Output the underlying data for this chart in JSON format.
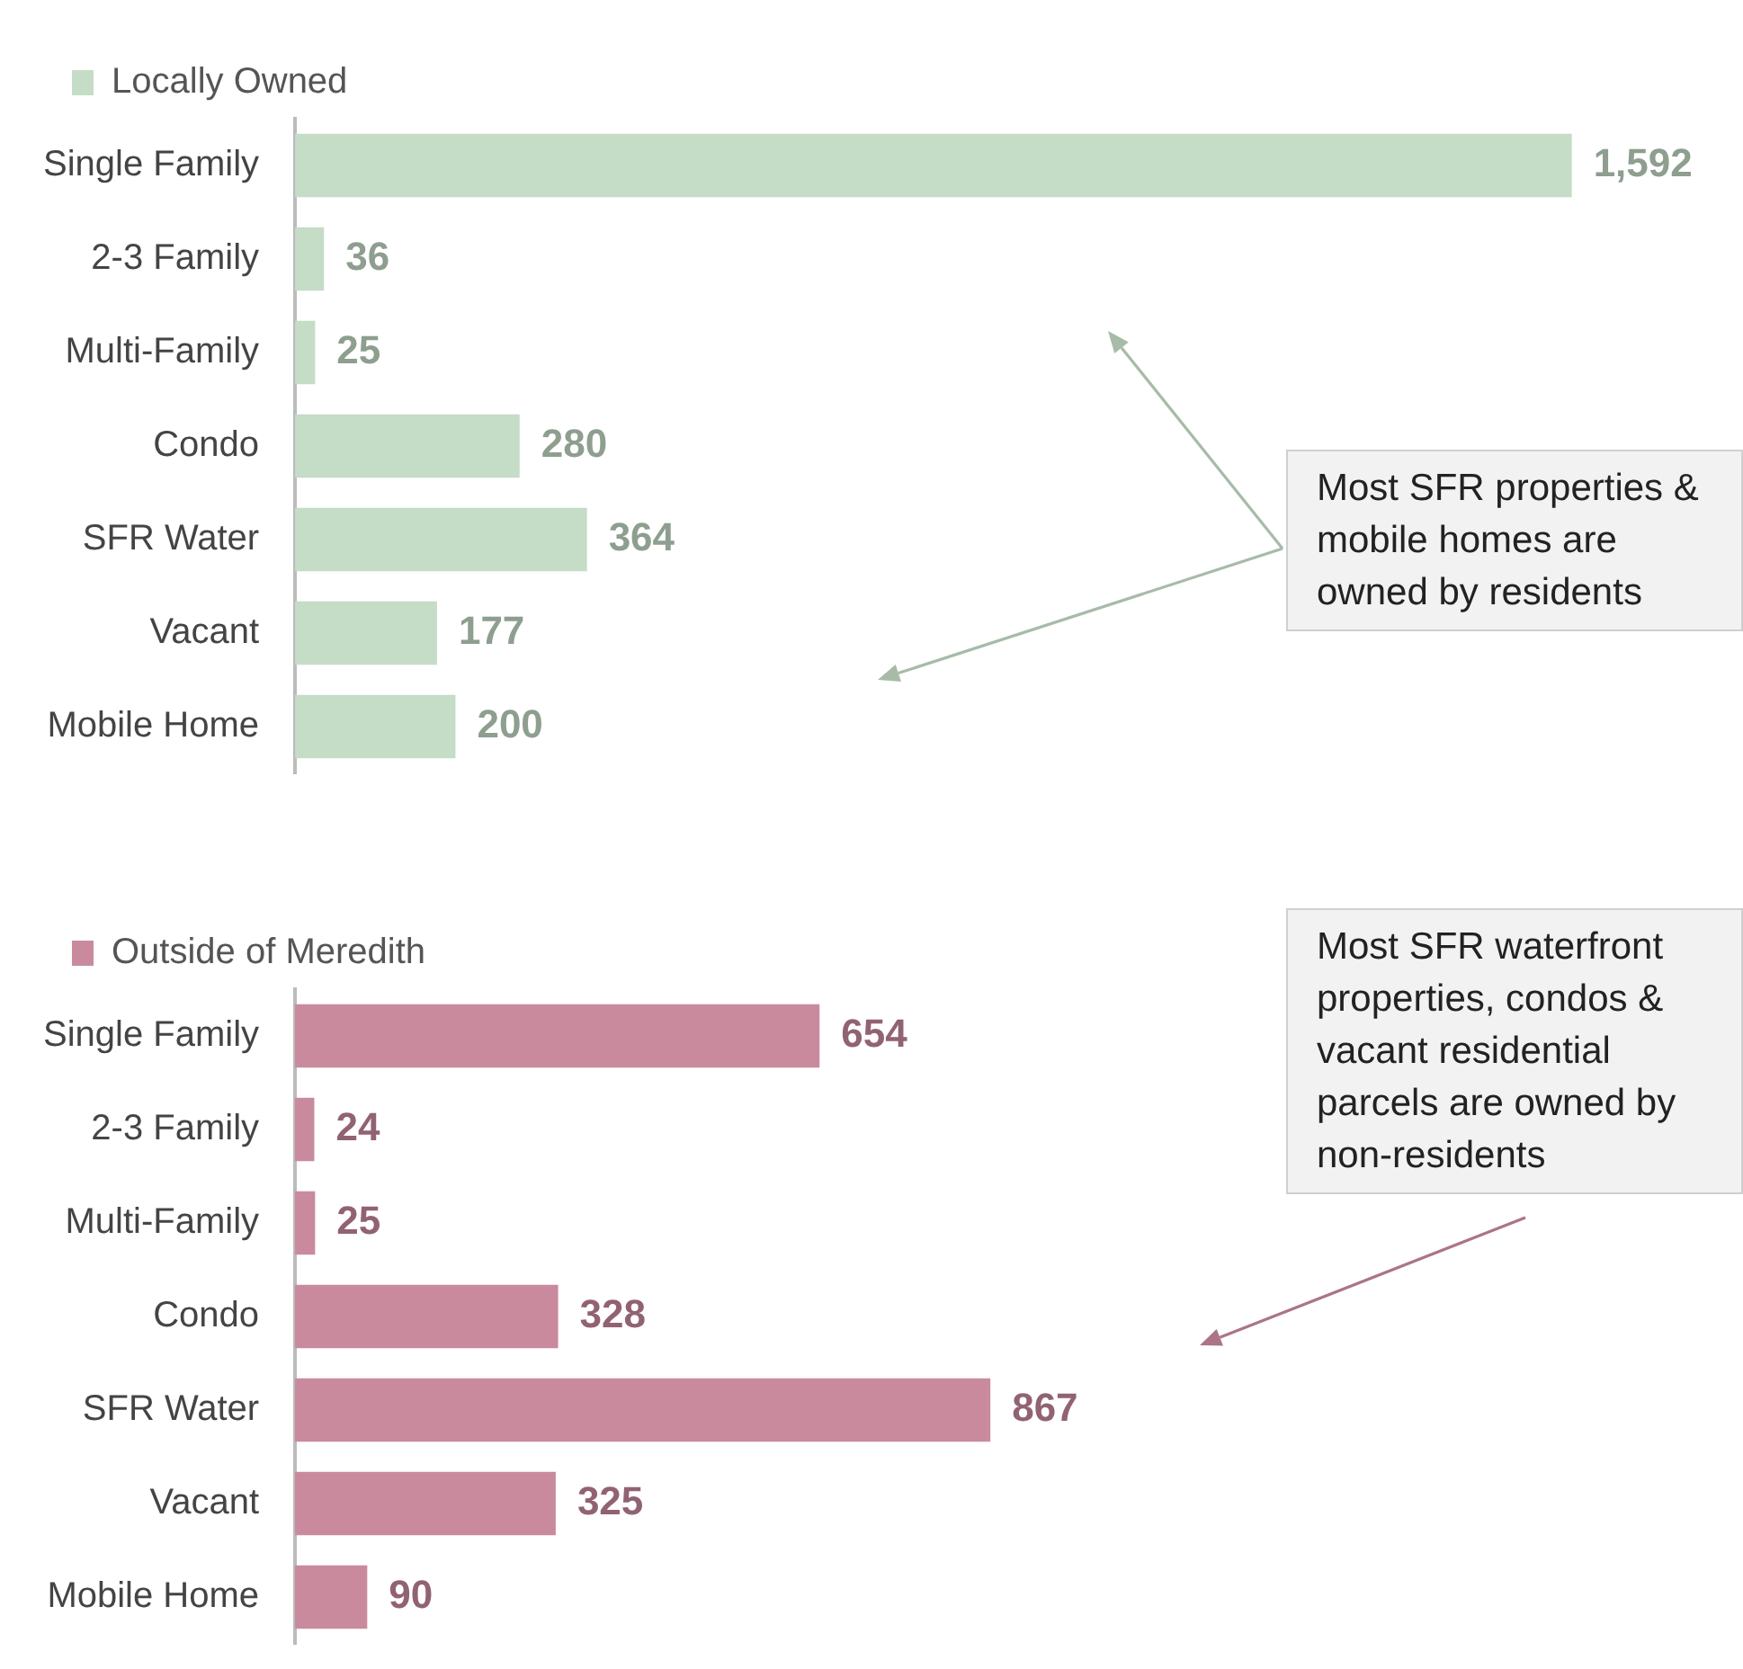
{
  "chart_data": [
    {
      "type": "bar",
      "orientation": "horizontal",
      "categories": [
        "Single Family",
        "2-3 Family",
        "Multi-Family",
        "Condo",
        "SFR Water",
        "Vacant",
        "Mobile Home"
      ],
      "series": [
        {
          "name": "Locally Owned",
          "color": "#c5dcc6",
          "values": [
            1592,
            36,
            25,
            280,
            364,
            177,
            200
          ],
          "value_labels": [
            "1,592",
            "36",
            "25",
            "280",
            "364",
            "177",
            "200"
          ]
        }
      ],
      "legend": "top left",
      "tick_labels": "y",
      "grid": false,
      "annotations": [
        "Most SFR properties & mobile homes are owned by residents"
      ]
    },
    {
      "type": "bar",
      "orientation": "horizontal",
      "categories": [
        "Single Family",
        "2-3 Family",
        "Multi-Family",
        "Condo",
        "SFR Water",
        "Vacant",
        "Mobile Home"
      ],
      "series": [
        {
          "name": "Outside of Meredith",
          "color": "#c98a9e",
          "values": [
            654,
            24,
            25,
            328,
            867,
            325,
            90
          ]
        }
      ],
      "data_labels": true,
      "legend": "top left",
      "tick_labels": "y",
      "grid": false,
      "annotations": [
        "Most SFR waterfront properties, condos & vacant residential parcels are owned by non-residents"
      ]
    }
  ]
}
